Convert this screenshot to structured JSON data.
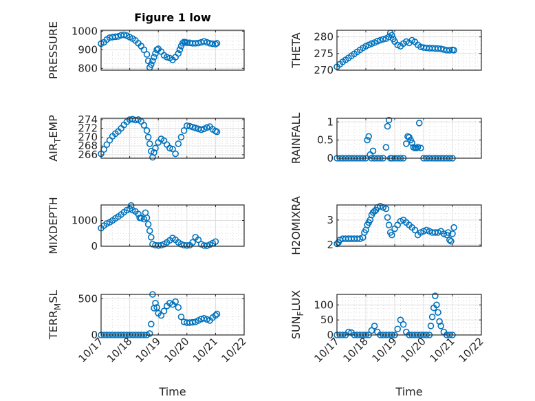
{
  "figure": {
    "title": "Figure 1 low",
    "marker_color": "#0072BD",
    "axis_color": "#262626",
    "grid_color": "#dfdfdf"
  },
  "chart_data": [
    {
      "type": "scatter",
      "id": "pressure",
      "title": "Figure 1 low",
      "ylabel": "PRESSURE",
      "ylabel_sub": null,
      "xlabel": "",
      "xlim": [
        0,
        5
      ],
      "ylim": [
        790,
        1005
      ],
      "yticks": [
        800,
        900,
        1000
      ],
      "ytick_labels": [
        "800",
        "900",
        "1000"
      ],
      "xticks": [
        0,
        1,
        2,
        3,
        4,
        5
      ],
      "xtick_labels": [],
      "grid": true,
      "minor_grid": true,
      "x": [
        0,
        0.1,
        0.2,
        0.3,
        0.4,
        0.5,
        0.6,
        0.7,
        0.8,
        0.9,
        1.0,
        1.1,
        1.2,
        1.3,
        1.4,
        1.5,
        1.6,
        1.65,
        1.7,
        1.75,
        1.8,
        1.85,
        1.9,
        1.95,
        2.0,
        2.1,
        2.2,
        2.3,
        2.4,
        2.5,
        2.6,
        2.7,
        2.75,
        2.8,
        2.85,
        2.9,
        2.95,
        3.0,
        3.1,
        3.2,
        3.3,
        3.4,
        3.5,
        3.6,
        3.7,
        3.8,
        3.9,
        4.0,
        4.05
      ],
      "y": [
        933,
        940,
        955,
        965,
        968,
        970,
        972,
        978,
        980,
        976,
        968,
        960,
        950,
        935,
        920,
        900,
        875,
        840,
        805,
        820,
        840,
        860,
        880,
        900,
        905,
        890,
        870,
        860,
        855,
        845,
        860,
        880,
        900,
        920,
        935,
        942,
        940,
        938,
        937,
        935,
        935,
        936,
        940,
        945,
        940,
        935,
        932,
        930,
        935
      ]
    },
    {
      "type": "scatter",
      "id": "theta",
      "ylabel": "THETA",
      "xlim": [
        0,
        5
      ],
      "ylim": [
        270,
        282
      ],
      "yticks": [
        270,
        275,
        280
      ],
      "ytick_labels": [
        "270",
        "275",
        "280"
      ],
      "xticks": [
        0,
        1,
        2,
        3,
        4,
        5
      ],
      "xtick_labels": [],
      "grid": true,
      "minor_grid": true,
      "x": [
        0,
        0.1,
        0.2,
        0.3,
        0.4,
        0.5,
        0.6,
        0.7,
        0.8,
        0.9,
        1.0,
        1.1,
        1.2,
        1.3,
        1.4,
        1.5,
        1.6,
        1.7,
        1.8,
        1.85,
        1.9,
        1.95,
        2.0,
        2.1,
        2.2,
        2.3,
        2.4,
        2.5,
        2.6,
        2.7,
        2.8,
        2.9,
        3.0,
        3.1,
        3.2,
        3.3,
        3.4,
        3.5,
        3.6,
        3.7,
        3.8,
        3.9,
        4.0,
        4.05
      ],
      "y": [
        271,
        271.8,
        272.5,
        273.1,
        273.7,
        274.3,
        274.9,
        275.5,
        276.1,
        276.7,
        277.2,
        277.6,
        278.0,
        278.3,
        278.7,
        279.0,
        279.3,
        279.5,
        280.0,
        281.2,
        280.5,
        279.4,
        278.6,
        277.6,
        277.2,
        278.0,
        278.6,
        278.2,
        279.0,
        278.5,
        277.6,
        277.0,
        276.8,
        276.7,
        276.6,
        276.6,
        276.5,
        276.5,
        276.4,
        276.2,
        276.0,
        276.0,
        276.1,
        276.0
      ]
    },
    {
      "type": "scatter",
      "id": "air_temp",
      "ylabel": "AIR",
      "ylabel_sub": "T",
      "ylabel_rest": "EMP",
      "xlim": [
        0,
        5
      ],
      "ylim": [
        265.2,
        274.3
      ],
      "yticks": [
        266,
        268,
        270,
        272,
        274
      ],
      "ytick_labels": [
        "266",
        "268",
        "270",
        "272",
        "274"
      ],
      "xticks": [
        0,
        1,
        2,
        3,
        4,
        5
      ],
      "xtick_labels": [],
      "grid": true,
      "minor_grid": true,
      "x": [
        0,
        0.1,
        0.2,
        0.3,
        0.4,
        0.5,
        0.6,
        0.7,
        0.8,
        0.9,
        1.0,
        1.1,
        1.2,
        1.3,
        1.4,
        1.5,
        1.6,
        1.65,
        1.7,
        1.75,
        1.8,
        1.85,
        1.9,
        2.0,
        2.1,
        2.2,
        2.3,
        2.4,
        2.5,
        2.6,
        2.7,
        2.8,
        2.9,
        3.0,
        3.1,
        3.2,
        3.3,
        3.4,
        3.5,
        3.6,
        3.7,
        3.8,
        3.9,
        4.0,
        4.05
      ],
      "y": [
        266.2,
        267.2,
        268.3,
        269.3,
        270.2,
        270.8,
        271.3,
        272.0,
        272.8,
        273.5,
        274.0,
        274.1,
        273.9,
        274.0,
        273.6,
        272.7,
        271.5,
        270.0,
        268.5,
        266.8,
        265.4,
        266.5,
        267.5,
        268.8,
        269.6,
        269.2,
        268.3,
        267.5,
        267.3,
        266.2,
        268.5,
        270.0,
        271.5,
        272.6,
        272.5,
        272.3,
        272.1,
        271.9,
        271.7,
        271.9,
        272.2,
        272.4,
        271.8,
        271.4,
        271.2
      ]
    },
    {
      "type": "scatter",
      "id": "rainfall",
      "ylabel": "RAINFALL",
      "xlim": [
        0,
        5
      ],
      "ylim": [
        0,
        1.1
      ],
      "yticks": [
        0,
        0.5,
        1
      ],
      "ytick_labels": [
        "0",
        "0.5",
        "1"
      ],
      "xticks": [
        0,
        1,
        2,
        3,
        4,
        5
      ],
      "xtick_labels": [],
      "grid": true,
      "minor_grid": true,
      "x": [
        0,
        0.1,
        0.2,
        0.3,
        0.4,
        0.5,
        0.6,
        0.7,
        0.8,
        0.9,
        1.0,
        1.05,
        1.1,
        1.15,
        1.2,
        1.25,
        1.3,
        1.4,
        1.5,
        1.6,
        1.7,
        1.75,
        1.8,
        1.85,
        1.9,
        2.0,
        2.1,
        2.2,
        2.3,
        2.4,
        2.45,
        2.5,
        2.55,
        2.6,
        2.65,
        2.7,
        2.75,
        2.8,
        2.85,
        2.9,
        3.0,
        3.1,
        3.2,
        3.3,
        3.4,
        3.5,
        3.6,
        3.7,
        3.8,
        3.9,
        4.0
      ],
      "y": [
        0,
        0,
        0,
        0,
        0,
        0,
        0,
        0,
        0,
        0,
        0,
        0.5,
        0.6,
        0.1,
        0,
        0.2,
        0,
        0,
        0,
        0,
        0.3,
        0.88,
        1.05,
        0,
        0,
        0,
        0,
        0,
        0,
        0.4,
        0.6,
        0.58,
        0.5,
        0.42,
        0.3,
        0.28,
        0.28,
        0.3,
        0.97,
        0.28,
        0,
        0,
        0,
        0,
        0,
        0,
        0,
        0,
        0,
        0,
        0
      ]
    },
    {
      "type": "scatter",
      "id": "mixdepth",
      "ylabel": "MIXDEPTH",
      "xlim": [
        0,
        5
      ],
      "ylim": [
        0,
        1600
      ],
      "yticks": [
        0,
        1000
      ],
      "ytick_labels": [
        "0",
        "1000"
      ],
      "xticks": [
        0,
        1,
        2,
        3,
        4,
        5
      ],
      "xtick_labels": [],
      "grid": true,
      "minor_grid": true,
      "x": [
        0,
        0.1,
        0.2,
        0.3,
        0.4,
        0.5,
        0.6,
        0.7,
        0.8,
        0.9,
        1.0,
        1.05,
        1.1,
        1.2,
        1.3,
        1.35,
        1.4,
        1.5,
        1.55,
        1.6,
        1.65,
        1.7,
        1.75,
        1.8,
        1.9,
        2.0,
        2.1,
        2.2,
        2.3,
        2.4,
        2.5,
        2.6,
        2.7,
        2.8,
        2.9,
        3.0,
        3.1,
        3.2,
        3.3,
        3.4,
        3.5,
        3.6,
        3.7,
        3.8,
        3.9,
        4.0
      ],
      "y": [
        700,
        800,
        880,
        930,
        1000,
        1080,
        1150,
        1230,
        1320,
        1400,
        1450,
        1580,
        1400,
        1350,
        1250,
        1100,
        1100,
        1050,
        1300,
        1100,
        850,
        600,
        350,
        80,
        40,
        30,
        40,
        80,
        150,
        230,
        320,
        250,
        150,
        80,
        40,
        30,
        40,
        150,
        350,
        250,
        80,
        30,
        20,
        60,
        120,
        180
      ]
    },
    {
      "type": "scatter",
      "id": "h2omixra",
      "ylabel": "H2OMIXRA",
      "xlim": [
        0,
        5
      ],
      "ylim": [
        1.95,
        3.6
      ],
      "yticks": [
        2,
        3
      ],
      "ytick_labels": [
        "2",
        "3"
      ],
      "xticks": [
        0,
        1,
        2,
        3,
        4,
        5
      ],
      "xtick_labels": [],
      "grid": true,
      "minor_grid": true,
      "x": [
        0,
        0.05,
        0.1,
        0.2,
        0.3,
        0.4,
        0.5,
        0.6,
        0.7,
        0.8,
        0.9,
        0.95,
        1.0,
        1.05,
        1.1,
        1.15,
        1.2,
        1.25,
        1.3,
        1.35,
        1.4,
        1.5,
        1.6,
        1.7,
        1.75,
        1.8,
        1.85,
        1.9,
        2.0,
        2.1,
        2.2,
        2.3,
        2.4,
        2.5,
        2.6,
        2.7,
        2.8,
        2.9,
        3.0,
        3.1,
        3.2,
        3.3,
        3.4,
        3.5,
        3.6,
        3.7,
        3.8,
        3.85,
        3.9,
        3.95,
        4.0,
        4.05
      ],
      "y": [
        2.05,
        2.1,
        2.2,
        2.25,
        2.25,
        2.25,
        2.25,
        2.25,
        2.25,
        2.25,
        2.3,
        2.5,
        2.6,
        2.8,
        2.9,
        3.0,
        3.2,
        3.3,
        3.35,
        3.4,
        3.5,
        3.55,
        3.5,
        3.45,
        3.1,
        2.8,
        2.5,
        2.4,
        2.65,
        2.8,
        2.95,
        3.0,
        2.9,
        2.8,
        2.7,
        2.6,
        2.4,
        2.5,
        2.55,
        2.6,
        2.55,
        2.5,
        2.5,
        2.5,
        2.55,
        2.45,
        2.4,
        2.5,
        2.2,
        2.15,
        2.45,
        2.7
      ]
    },
    {
      "type": "scatter",
      "id": "terr_msl",
      "ylabel": "TERR",
      "ylabel_sub": "M",
      "ylabel_rest": "SL",
      "xlabel": "Time",
      "xlim": [
        0,
        5
      ],
      "ylim": [
        0,
        560
      ],
      "yticks": [
        0,
        500
      ],
      "ytick_labels": [
        "0",
        "500"
      ],
      "xticks": [
        0,
        1,
        2,
        3,
        4,
        5
      ],
      "xtick_labels": [
        "10/17",
        "10/18",
        "10/19",
        "10/20",
        "10/21",
        "10/22"
      ],
      "grid": true,
      "minor_grid": true,
      "x": [
        0,
        0.1,
        0.2,
        0.3,
        0.4,
        0.5,
        0.6,
        0.7,
        0.8,
        0.9,
        1.0,
        1.1,
        1.2,
        1.3,
        1.4,
        1.5,
        1.6,
        1.7,
        1.75,
        1.8,
        1.85,
        1.9,
        1.95,
        2.0,
        2.1,
        2.2,
        2.3,
        2.4,
        2.5,
        2.6,
        2.7,
        2.8,
        2.9,
        3.0,
        3.1,
        3.2,
        3.3,
        3.4,
        3.5,
        3.6,
        3.7,
        3.8,
        3.9,
        4.0,
        4.05
      ],
      "y": [
        0,
        0,
        0,
        0,
        0,
        0,
        0,
        0,
        0,
        0,
        0,
        0,
        0,
        0,
        0,
        0,
        0,
        20,
        150,
        560,
        370,
        440,
        380,
        300,
        270,
        330,
        400,
        440,
        420,
        460,
        380,
        250,
        180,
        170,
        170,
        175,
        180,
        200,
        220,
        230,
        215,
        200,
        240,
        270,
        290
      ]
    },
    {
      "type": "scatter",
      "id": "sun_flux",
      "ylabel": "SUN",
      "ylabel_sub": "F",
      "ylabel_rest": "LUX",
      "xlabel": "Time",
      "xlim": [
        0,
        5
      ],
      "ylim": [
        0,
        135
      ],
      "yticks": [
        0,
        50,
        100
      ],
      "ytick_labels": [
        "0",
        "50",
        "100"
      ],
      "xticks": [
        0,
        1,
        2,
        3,
        4,
        5
      ],
      "xtick_labels": [
        "10/17",
        "10/18",
        "10/19",
        "10/20",
        "10/21",
        "10/22"
      ],
      "grid": true,
      "minor_grid": true,
      "x": [
        0,
        0.1,
        0.2,
        0.3,
        0.4,
        0.5,
        0.6,
        0.7,
        0.8,
        0.9,
        1.0,
        1.1,
        1.2,
        1.3,
        1.4,
        1.5,
        1.6,
        1.7,
        1.8,
        1.9,
        2.0,
        2.1,
        2.2,
        2.3,
        2.4,
        2.5,
        2.6,
        2.7,
        2.8,
        2.9,
        3.0,
        3.1,
        3.2,
        3.25,
        3.3,
        3.35,
        3.4,
        3.45,
        3.5,
        3.55,
        3.6,
        3.7,
        3.8,
        3.9,
        4.0
      ],
      "y": [
        0,
        0,
        0,
        0,
        10,
        8,
        0,
        0,
        0,
        0,
        0,
        0,
        15,
        30,
        10,
        0,
        0,
        0,
        0,
        0,
        0,
        20,
        50,
        35,
        10,
        0,
        0,
        0,
        0,
        0,
        0,
        0,
        0,
        30,
        60,
        90,
        130,
        100,
        75,
        45,
        30,
        10,
        0,
        0,
        0
      ]
    }
  ]
}
